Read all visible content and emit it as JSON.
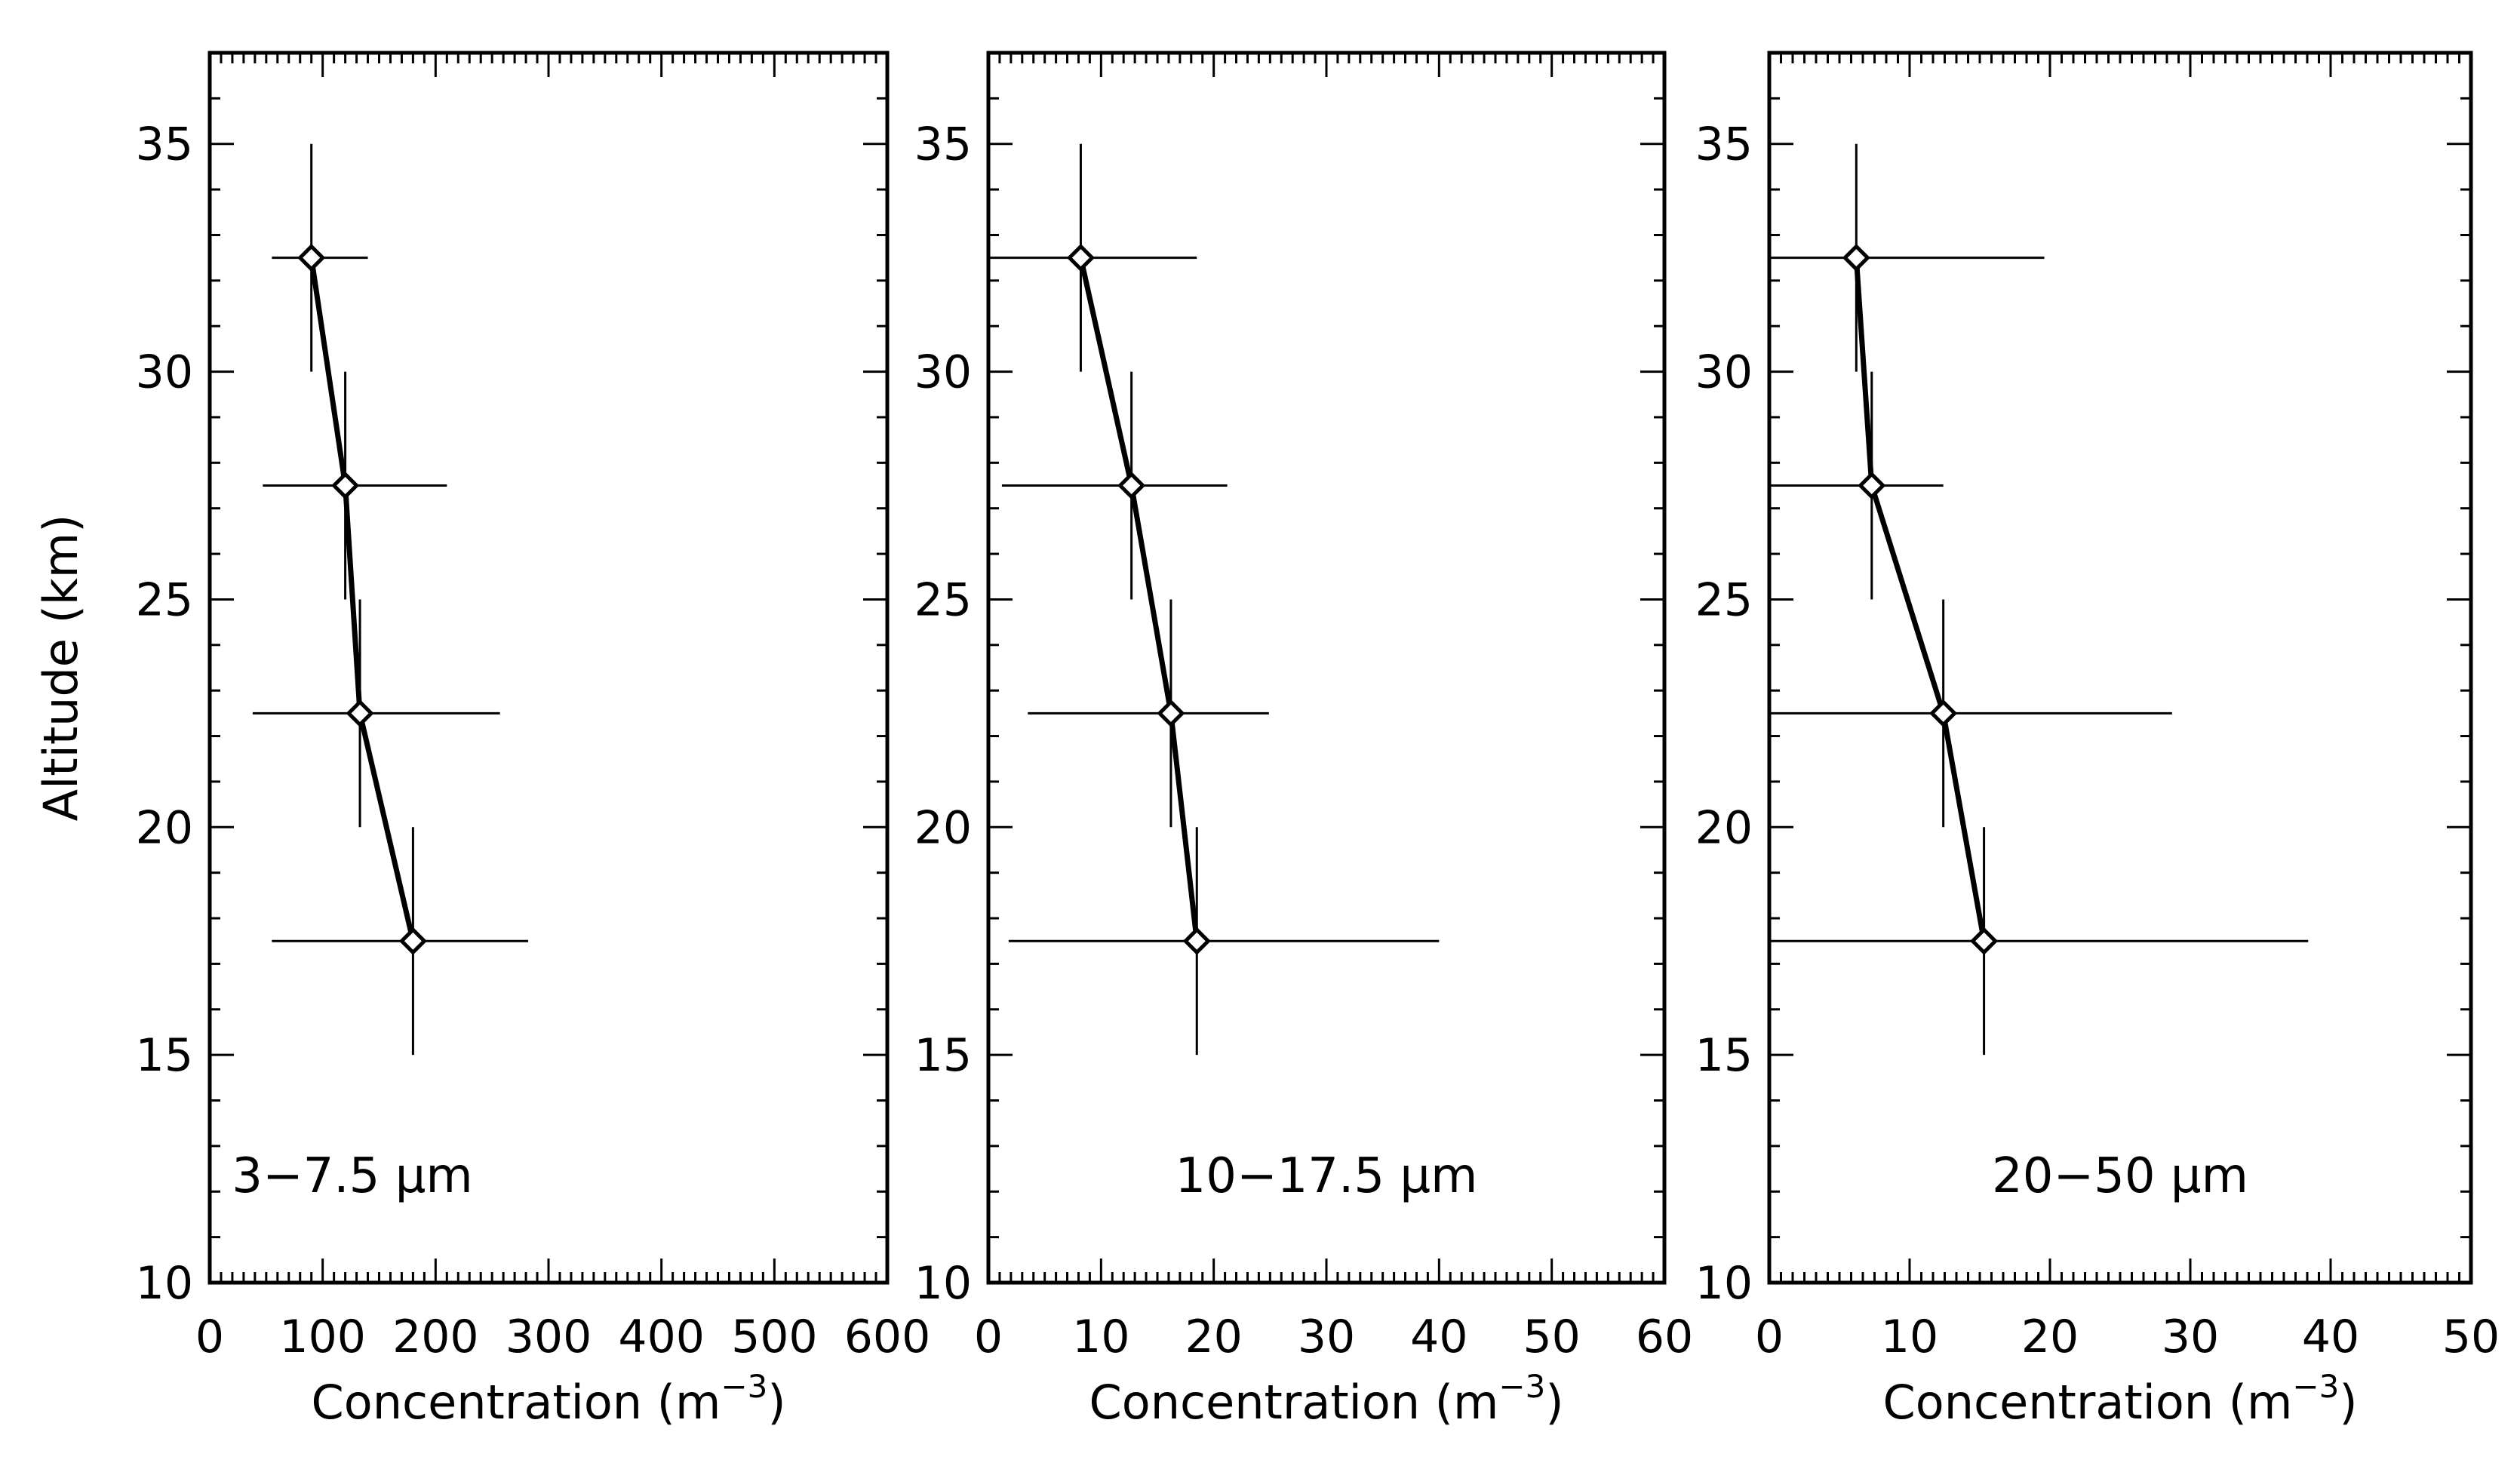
{
  "chart_data": [
    {
      "type": "line",
      "panel_label": "3−7.5 μm",
      "xlabel": "Concentration (m",
      "xlabel_sup": "−3",
      "xlabel_close": ")",
      "ylabel": "Altitude (km)",
      "xlim": [
        0,
        600
      ],
      "ylim": [
        10,
        37
      ],
      "xticks": [
        "0",
        "100",
        "200",
        "300",
        "400",
        "500",
        "600"
      ],
      "xtick_values": [
        0,
        100,
        200,
        300,
        400,
        500,
        600
      ],
      "yticks": [
        "10",
        "15",
        "20",
        "25",
        "30",
        "35"
      ],
      "ytick_values": [
        10,
        15,
        20,
        25,
        30,
        35
      ],
      "points": [
        {
          "x": 90,
          "y": 32.5,
          "xerr": [
            55,
            140
          ],
          "yerr": [
            30,
            35
          ]
        },
        {
          "x": 120,
          "y": 27.5,
          "xerr": [
            47,
            210
          ],
          "yerr": [
            25,
            30
          ]
        },
        {
          "x": 133,
          "y": 22.5,
          "xerr": [
            38,
            257
          ],
          "yerr": [
            20,
            25
          ]
        },
        {
          "x": 180,
          "y": 17.5,
          "xerr": [
            55,
            282
          ],
          "yerr": [
            15,
            20
          ]
        }
      ]
    },
    {
      "type": "line",
      "panel_label": "10−17.5 μm",
      "xlabel": "Concentration (m",
      "xlabel_sup": "−3",
      "xlabel_close": ")",
      "ylabel": "",
      "xlim": [
        0,
        60
      ],
      "ylim": [
        10,
        37
      ],
      "xticks": [
        "0",
        "10",
        "20",
        "30",
        "40",
        "50",
        "60"
      ],
      "xtick_values": [
        0,
        10,
        20,
        30,
        40,
        50,
        60
      ],
      "yticks": [
        "10",
        "15",
        "20",
        "25",
        "30",
        "35"
      ],
      "ytick_values": [
        10,
        15,
        20,
        25,
        30,
        35
      ],
      "points": [
        {
          "x": 8.2,
          "y": 32.5,
          "xerr": [
            0,
            18.5
          ],
          "yerr": [
            30,
            35
          ]
        },
        {
          "x": 12.7,
          "y": 27.5,
          "xerr": [
            1.2,
            21.2
          ],
          "yerr": [
            25,
            30
          ]
        },
        {
          "x": 16.2,
          "y": 22.5,
          "xerr": [
            3.5,
            24.9
          ],
          "yerr": [
            20,
            25
          ]
        },
        {
          "x": 18.5,
          "y": 17.5,
          "xerr": [
            1.8,
            40
          ],
          "yerr": [
            15,
            20
          ]
        }
      ]
    },
    {
      "type": "line",
      "panel_label": "20−50 μm",
      "xlabel": "Concentration (m",
      "xlabel_sup": "−3",
      "xlabel_close": ")",
      "ylabel": "",
      "xlim": [
        0,
        50
      ],
      "ylim": [
        10,
        37
      ],
      "xticks": [
        "0",
        "10",
        "20",
        "30",
        "40",
        "50"
      ],
      "xtick_values": [
        0,
        10,
        20,
        30,
        40,
        50
      ],
      "yticks": [
        "10",
        "15",
        "20",
        "25",
        "30",
        "35"
      ],
      "ytick_values": [
        10,
        15,
        20,
        25,
        30,
        35
      ],
      "points": [
        {
          "x": 6.2,
          "y": 32.5,
          "xerr": [
            0,
            19.6
          ],
          "yerr": [
            30,
            35
          ]
        },
        {
          "x": 7.3,
          "y": 27.5,
          "xerr": [
            0,
            12.4
          ],
          "yerr": [
            25,
            30
          ]
        },
        {
          "x": 12.4,
          "y": 22.5,
          "xerr": [
            0,
            28.7
          ],
          "yerr": [
            20,
            25
          ]
        },
        {
          "x": 15.3,
          "y": 17.5,
          "xerr": [
            0,
            38.4
          ],
          "yerr": [
            15,
            20
          ]
        }
      ]
    }
  ]
}
